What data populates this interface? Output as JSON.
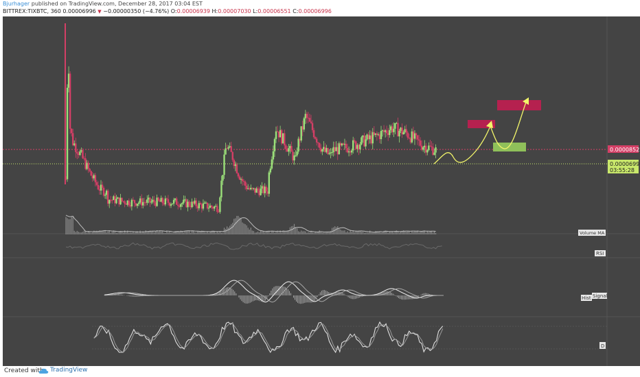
{
  "header": {
    "author": "Bjurhager",
    "published": "published on TradingView.com, December 28, 2017 03:04 EST",
    "symbol": "BITTREX:TIXBTC, 360",
    "last": "0.00006996",
    "change": "−0.00000350 (−4.76%)",
    "o_label": "O:",
    "o": "0.00006939",
    "h_label": "H:",
    "h": "0.00007030",
    "l_label": "L:",
    "l": "0.00006551",
    "c_label": "C:",
    "c": "0.00006996"
  },
  "chart_data": {
    "type": "candlestick",
    "price_labels": {
      "resistance": "0.00008522",
      "last_price": "0.00006996",
      "countdown": "03:55:28"
    },
    "indicator_labels": {
      "volume": "Volume MA",
      "rsi": "RSI",
      "macd_hist": "Hist",
      "macd_signal": "Signal",
      "stoch_d": "D"
    },
    "colors": {
      "background": "#444444",
      "up": "#9be07a",
      "down": "#d43f66",
      "resistance_line": "#d43f66",
      "last_price_line": "#c9e86b",
      "target_box": "#b5214f",
      "entry_box": "#8fc05a",
      "projection": "#f2f56a"
    },
    "series": [
      {
        "segment": "spike",
        "x_range": [
          0,
          10
        ],
        "y_values": [
          6e-05,
          0.00011,
          7.8e-05,
          7.4e-05
        ]
      },
      {
        "segment": "decline",
        "x_range": [
          10,
          60
        ],
        "y_values": [
          7.3e-05,
          6.8e-05,
          6.2e-05,
          5.7e-05,
          5.5e-05
        ]
      },
      {
        "segment": "base",
        "x_range": [
          60,
          220
        ],
        "y_values": [
          5.3e-05,
          5.2e-05,
          5.2e-05,
          5.2e-05,
          5.1e-05,
          5e-05
        ]
      },
      {
        "segment": "pump_1",
        "x_range": [
          220,
          265
        ],
        "y_values": [
          5.5e-05,
          7.2e-05,
          6.8e-05,
          6.2e-05,
          5.8e-05,
          5.6e-05
        ]
      },
      {
        "segment": "pump_2",
        "x_range": [
          290,
          330
        ],
        "y_values": [
          6.2e-05,
          7.8e-05,
          7.4e-05,
          7e-05,
          6.6e-05
        ]
      },
      {
        "segment": "pump_3",
        "x_range": [
          330,
          380
        ],
        "y_values": [
          7.1e-05,
          8.2e-05,
          7.6e-05,
          7e-05,
          6.8e-05
        ]
      },
      {
        "segment": "range",
        "x_range": [
          380,
          530
        ],
        "y_values": [
          7e-05,
          7.1e-05,
          7.3e-05,
          7.5e-05,
          7.8e-05,
          7.6e-05,
          7.2e-05,
          7e-05
        ]
      }
    ]
  }
}
